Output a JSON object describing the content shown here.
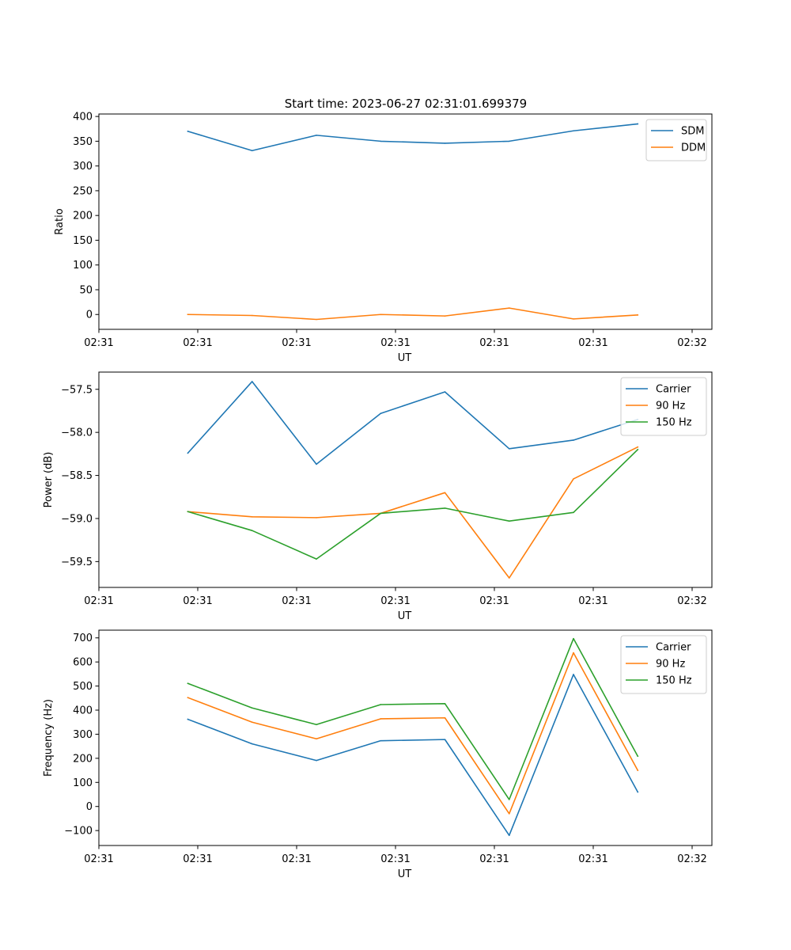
{
  "figure": {
    "title": "Start time: 2023-06-27 02:31:01.699379"
  },
  "chart_data": [
    {
      "type": "line",
      "title": "Start time: 2023-06-27 02:31:01.699379",
      "xlabel": "UT",
      "ylabel": "Ratio",
      "x": [
        0.9,
        1.55,
        2.2,
        2.85,
        3.5,
        4.15,
        4.8,
        5.45
      ],
      "xlim": [
        0.0,
        6.2
      ],
      "x_ticks": [
        0.0,
        1.0,
        2.0,
        3.0,
        4.0,
        5.0,
        6.0
      ],
      "x_tick_labels": [
        "02:31",
        "02:31",
        "02:31",
        "02:31",
        "02:31",
        "02:31",
        "02:32"
      ],
      "ylim": [
        -30,
        405
      ],
      "y_ticks": [
        0,
        50,
        100,
        150,
        200,
        250,
        300,
        350,
        400
      ],
      "y_tick_labels": [
        "0",
        "50",
        "100",
        "150",
        "200",
        "250",
        "300",
        "350",
        "400"
      ],
      "legend": "top-right",
      "grid": false,
      "series": [
        {
          "name": "SDM",
          "color": "#1f77b4",
          "values": [
            370,
            331,
            362,
            350,
            346,
            350,
            371,
            385
          ]
        },
        {
          "name": "DDM",
          "color": "#ff7f0e",
          "values": [
            0,
            -2,
            -10,
            0,
            -3,
            13,
            -9,
            -1
          ]
        }
      ]
    },
    {
      "type": "line",
      "xlabel": "UT",
      "ylabel": "Power (dB)",
      "x": [
        0.9,
        1.55,
        2.2,
        2.85,
        3.5,
        4.15,
        4.8,
        5.45
      ],
      "xlim": [
        0.0,
        6.2
      ],
      "x_ticks": [
        0.0,
        1.0,
        2.0,
        3.0,
        4.0,
        5.0,
        6.0
      ],
      "x_tick_labels": [
        "02:31",
        "02:31",
        "02:31",
        "02:31",
        "02:31",
        "02:31",
        "02:32"
      ],
      "ylim": [
        -59.8,
        -57.3
      ],
      "y_ticks": [
        -59.5,
        -59.0,
        -58.5,
        -58.0,
        -57.5
      ],
      "y_tick_labels": [
        "−59.5",
        "−59.0",
        "−58.5",
        "−58.0",
        "−57.5"
      ],
      "legend": "top-right",
      "grid": false,
      "series": [
        {
          "name": "Carrier",
          "color": "#1f77b4",
          "values": [
            -58.24,
            -57.41,
            -58.37,
            -57.78,
            -57.53,
            -58.19,
            -58.09,
            -57.85
          ]
        },
        {
          "name": "90 Hz",
          "color": "#ff7f0e",
          "values": [
            -58.92,
            -58.98,
            -58.99,
            -58.94,
            -58.7,
            -59.69,
            -58.54,
            -58.17
          ]
        },
        {
          "name": "150 Hz",
          "color": "#2ca02c",
          "values": [
            -58.92,
            -59.14,
            -59.47,
            -58.94,
            -58.88,
            -59.03,
            -58.93,
            -58.2
          ]
        }
      ]
    },
    {
      "type": "line",
      "xlabel": "UT",
      "ylabel": "Frequency (Hz)",
      "x": [
        0.9,
        1.55,
        2.2,
        2.85,
        3.5,
        4.15,
        4.8,
        5.45
      ],
      "xlim": [
        0.0,
        6.2
      ],
      "x_ticks": [
        0.0,
        1.0,
        2.0,
        3.0,
        4.0,
        5.0,
        6.0
      ],
      "x_tick_labels": [
        "02:31",
        "02:31",
        "02:31",
        "02:31",
        "02:31",
        "02:31",
        "02:32"
      ],
      "ylim": [
        -162,
        732
      ],
      "y_ticks": [
        -100,
        0,
        100,
        200,
        300,
        400,
        500,
        600,
        700
      ],
      "y_tick_labels": [
        "−100",
        "0",
        "100",
        "200",
        "300",
        "400",
        "500",
        "600",
        "700"
      ],
      "legend": "top-right",
      "grid": false,
      "series": [
        {
          "name": "Carrier",
          "color": "#1f77b4",
          "values": [
            362,
            260,
            191,
            273,
            278,
            -120,
            548,
            60
          ]
        },
        {
          "name": "90 Hz",
          "color": "#ff7f0e",
          "values": [
            452,
            350,
            281,
            364,
            368,
            -30,
            638,
            150
          ]
        },
        {
          "name": "150 Hz",
          "color": "#2ca02c",
          "values": [
            511,
            409,
            340,
            423,
            427,
            29,
            697,
            209
          ]
        }
      ]
    }
  ]
}
